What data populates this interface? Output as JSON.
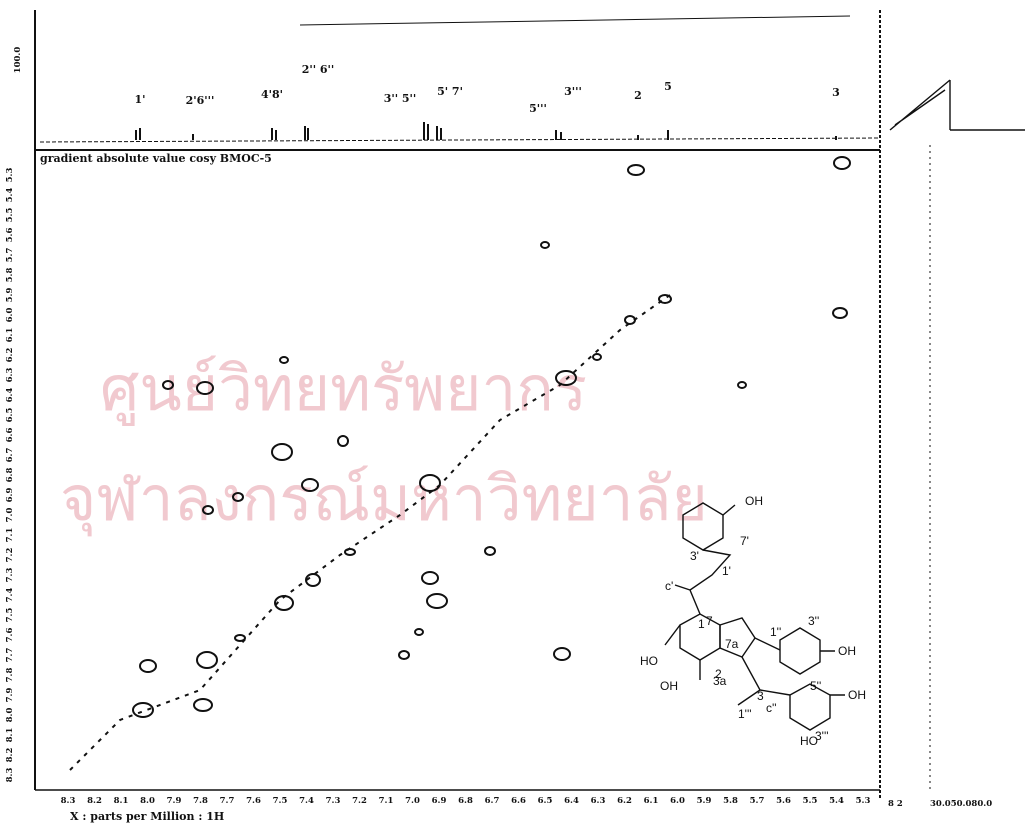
{
  "spectrum": {
    "axis_top_label": "100.0",
    "title": "gradient absolute value cosy BMOC-5",
    "x_label": "X : parts per Million : 1H",
    "peak_labels": [
      "1'",
      "2'6'''",
      "4'8'",
      "2'' 6''",
      "3'' 5''",
      "5' 7'",
      "5'''",
      "3'''",
      "2",
      "5",
      "3"
    ],
    "x_ticks": [
      "8.3",
      "8.2",
      "8.1",
      "8.0",
      "7.9",
      "7.8",
      "7.7",
      "7.6",
      "7.5",
      "7.4",
      "7.3",
      "7.2",
      "7.1",
      "7.0",
      "6.9",
      "6.8",
      "6.7",
      "6.6",
      "6.5",
      "6.4",
      "6.3",
      "6.2",
      "6.1",
      "6.0",
      "5.9",
      "5.8",
      "5.7",
      "5.6",
      "5.5",
      "5.4",
      "5.3"
    ],
    "y_ticks": [
      "5.3",
      "5.4",
      "5.5",
      "5.6",
      "5.7",
      "5.8",
      "5.9",
      "6.0",
      "6.1",
      "6.2",
      "6.3",
      "6.4",
      "6.5",
      "6.6",
      "6.7",
      "6.8",
      "6.9",
      "7.0",
      "7.1",
      "7.2",
      "7.3",
      "7.4",
      "7.5",
      "7.6",
      "7.7",
      "7.8",
      "7.9",
      "8.0",
      "8.1",
      "8.2",
      "8.3"
    ],
    "right_axis_left": "8 2",
    "right_axis_ticks": "30.050.080.0"
  },
  "watermark": [
    "ศูนย์วิทยทรัพยากร",
    "จุฬาลงกรณ์มหาวิทยาลัย"
  ],
  "structure": {
    "labels": [
      "OH",
      "7'",
      "3'",
      "1'",
      "c'",
      "1",
      "3''",
      "HO",
      "7",
      "7a",
      "1''",
      "OH",
      "2",
      "5''",
      "3a",
      "3",
      "c''",
      "OH",
      "1'''",
      "OH",
      "HO",
      "3'''"
    ]
  }
}
